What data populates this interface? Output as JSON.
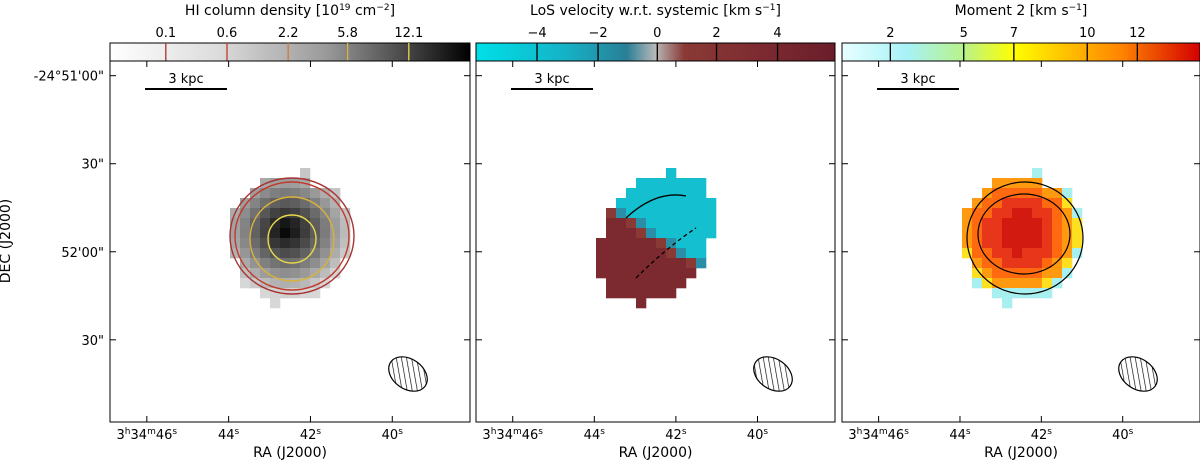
{
  "chart_data": {
    "type": "heatmap",
    "x_axis": {
      "label": "RA (J2000)",
      "ticks": [
        {
          "ra_s": 46,
          "label": "3h34m46s"
        },
        {
          "ra_s": 44,
          "label": "44s"
        },
        {
          "ra_s": 42,
          "label": "42s"
        },
        {
          "ra_s": 40,
          "label": "40s"
        }
      ],
      "range_s": [
        46.9,
        38.1
      ]
    },
    "y_axis": {
      "label": "DEC (J2000)",
      "ticks": [
        {
          "dec_arcsec": 0,
          "label": "-24°51'00\""
        },
        {
          "dec_arcsec": 30,
          "label": "30\""
        },
        {
          "dec_arcsec": 60,
          "label": "52'00\""
        },
        {
          "dec_arcsec": 90,
          "label": "30\""
        }
      ],
      "range_arcsec_below_51m": [
        -5,
        118
      ]
    },
    "scale_bar": "3 kpc",
    "panels": [
      {
        "id": "column-density",
        "title": "HI column density [10",
        "title_sup": "19",
        "title_tail": " cm",
        "title_sup2": "−2",
        "title_end": "]",
        "colormap": "gray",
        "colorbar_ticks": [
          "0.1",
          "0.6",
          "2.2",
          "5.8",
          "12.1"
        ],
        "colorbar_tick_fractions": [
          0.155,
          0.325,
          0.495,
          0.66,
          0.83
        ],
        "colorbar_line_colors": [
          "#a83232",
          "#c03a2b",
          "#d07a3a",
          "#d8b23a",
          "#e8d84a"
        ],
        "contour_levels": [
          "0.1",
          "0.6",
          "2.2",
          "5.8",
          "12.1"
        ]
      },
      {
        "id": "velocity",
        "title": "LoS velocity w.r.t. systemic [km s",
        "title_sup": "−1",
        "title_end": "]",
        "colormap": "cyan-gray-maroon",
        "colorbar_ticks": [
          "−4",
          "−2",
          "0",
          "2",
          "4"
        ],
        "colorbar_tick_fractions": [
          0.17,
          0.34,
          0.505,
          0.67,
          0.84
        ],
        "velocity_range": [
          -6,
          6
        ]
      },
      {
        "id": "moment2",
        "title": "Moment 2 [km s",
        "title_sup": "−1",
        "title_end": "]",
        "colormap": "jet-like",
        "colorbar_ticks": [
          "2",
          "5",
          "7",
          "10",
          "12"
        ],
        "colorbar_tick_fractions": [
          0.135,
          0.34,
          0.48,
          0.685,
          0.825
        ],
        "dispersion_range": [
          0,
          15
        ]
      }
    ]
  }
}
